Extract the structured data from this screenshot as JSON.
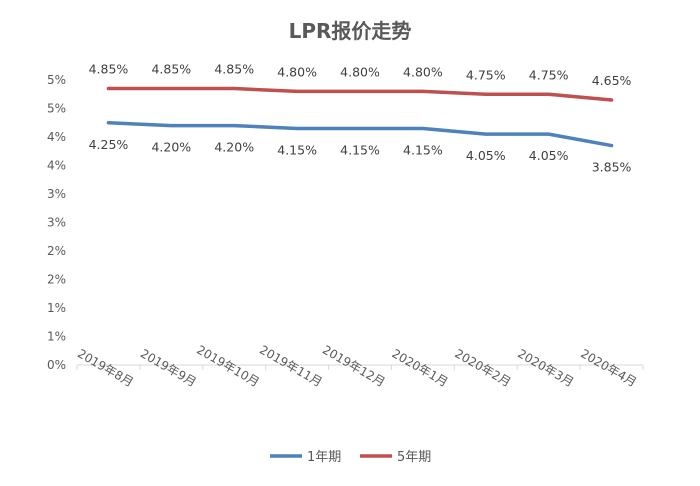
{
  "chart_data": {
    "type": "line",
    "title": "LPR报价走势",
    "categories": [
      "2019年8月",
      "2019年9月",
      "2019年10月",
      "2019年11月",
      "2019年12月",
      "2020年1月",
      "2020年2月",
      "2020年3月",
      "2020年4月"
    ],
    "y_ticks": [
      "0%",
      "1%",
      "1%",
      "2%",
      "2%",
      "3%",
      "3%",
      "4%",
      "4%",
      "5%",
      "5%"
    ],
    "ylim": [
      0,
      5.0
    ],
    "series": [
      {
        "name": "1年期",
        "values": [
          4.25,
          4.2,
          4.2,
          4.15,
          4.15,
          4.15,
          4.05,
          4.05,
          3.85
        ],
        "labels": [
          "4.25%",
          "4.20%",
          "4.20%",
          "4.15%",
          "4.15%",
          "4.15%",
          "4.05%",
          "4.05%",
          "3.85%"
        ],
        "color": "#4f81bd"
      },
      {
        "name": "5年期",
        "values": [
          4.85,
          4.85,
          4.85,
          4.8,
          4.8,
          4.8,
          4.75,
          4.75,
          4.65
        ],
        "labels": [
          "4.85%",
          "4.85%",
          "4.85%",
          "4.80%",
          "4.80%",
          "4.80%",
          "4.75%",
          "4.75%",
          "4.65%"
        ],
        "color": "#c0504d"
      }
    ],
    "legend_position": "bottom",
    "grid": false
  }
}
